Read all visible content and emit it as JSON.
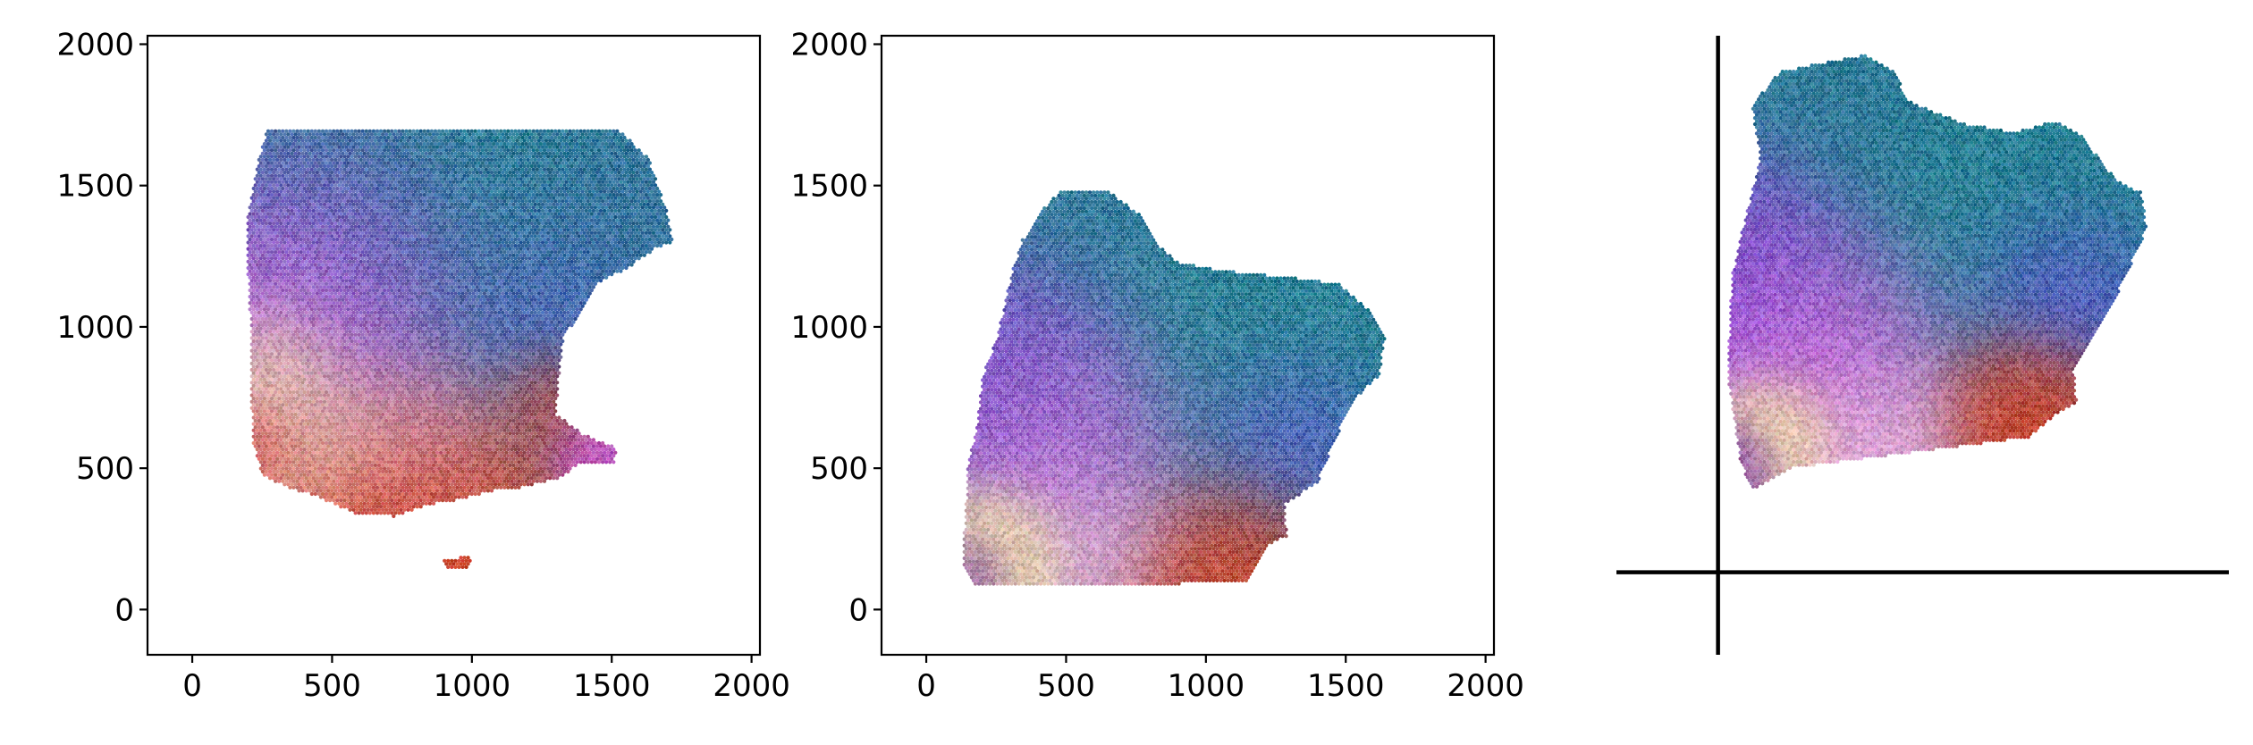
{
  "chart_data": [
    {
      "type": "scatter",
      "name": "panel-1",
      "xlim": [
        -160,
        2030
      ],
      "ylim": [
        -160,
        2030
      ],
      "xticks": [
        {
          "value": 0,
          "label": "0"
        },
        {
          "value": 500,
          "label": "500"
        },
        {
          "value": 1000,
          "label": "1000"
        },
        {
          "value": 1500,
          "label": "1500"
        },
        {
          "value": 2000,
          "label": "2000"
        }
      ],
      "yticks": [
        {
          "value": 0,
          "label": "0"
        },
        {
          "value": 500,
          "label": "500"
        },
        {
          "value": 1000,
          "label": "1000"
        },
        {
          "value": 1500,
          "label": "1500"
        },
        {
          "value": 2000,
          "label": "2000"
        }
      ],
      "show_axes": true,
      "grid": false,
      "marker_size": 13,
      "outline": [
        [
          270,
          1700
        ],
        [
          1520,
          1700
        ],
        [
          1630,
          1600
        ],
        [
          1700,
          1400
        ],
        [
          1720,
          1300
        ],
        [
          1660,
          1280
        ],
        [
          1560,
          1210
        ],
        [
          1440,
          1150
        ],
        [
          1400,
          1060
        ],
        [
          1330,
          970
        ],
        [
          1310,
          820
        ],
        [
          1300,
          690
        ],
        [
          1400,
          620
        ],
        [
          1520,
          570
        ],
        [
          1510,
          520
        ],
        [
          1380,
          520
        ],
        [
          1330,
          470
        ],
        [
          1170,
          430
        ],
        [
          1080,
          420
        ],
        [
          960,
          390
        ],
        [
          840,
          370
        ],
        [
          720,
          330
        ],
        [
          580,
          340
        ],
        [
          450,
          400
        ],
        [
          340,
          430
        ],
        [
          250,
          480
        ],
        [
          220,
          580
        ],
        [
          210,
          760
        ],
        [
          210,
          990
        ],
        [
          200,
          1180
        ],
        [
          200,
          1400
        ],
        [
          240,
          1600
        ]
      ],
      "islands": [
        {
          "outline": [
            [
              890,
              175
            ],
            [
              1000,
              190
            ],
            [
              985,
              150
            ],
            [
              905,
              150
            ]
          ]
        }
      ],
      "color_zones": [
        {
          "at": [
            1050,
            1450
          ],
          "radius": 600,
          "color": "#1e7a8f",
          "weight": 3.0
        },
        {
          "at": [
            1480,
            1450
          ],
          "radius": 320,
          "color": "#3a5fa0",
          "weight": 1.0
        },
        {
          "at": [
            650,
            1250
          ],
          "radius": 380,
          "color": "#8a3fd6",
          "weight": 1.6
        },
        {
          "at": [
            1250,
            1100
          ],
          "radius": 300,
          "color": "#6a3fe0",
          "weight": 1.0
        },
        {
          "at": [
            500,
            1000
          ],
          "radius": 380,
          "color": "#d966dc",
          "weight": 1.8
        },
        {
          "at": [
            330,
            860
          ],
          "radius": 190,
          "color": "#f2ea8c",
          "weight": 1.5
        },
        {
          "at": [
            480,
            650
          ],
          "radius": 230,
          "color": "#ecd8a0",
          "weight": 1.4
        },
        {
          "at": [
            800,
            640
          ],
          "radius": 250,
          "color": "#e6b2d6",
          "weight": 1.0
        },
        {
          "at": [
            800,
            460
          ],
          "radius": 360,
          "color": "#cf3a1f",
          "weight": 1.8
        },
        {
          "at": [
            1280,
            760
          ],
          "radius": 160,
          "color": "#cc3b22",
          "weight": 1.2
        },
        {
          "at": [
            250,
            600
          ],
          "radius": 140,
          "color": "#c83a2a",
          "weight": 1.0
        },
        {
          "at": [
            1440,
            570
          ],
          "radius": 140,
          "color": "#d94bd0",
          "weight": 1.0
        }
      ]
    },
    {
      "type": "scatter",
      "name": "panel-2",
      "xlim": [
        -160,
        2030
      ],
      "ylim": [
        -160,
        2030
      ],
      "xticks": [
        {
          "value": 0,
          "label": "0"
        },
        {
          "value": 500,
          "label": "500"
        },
        {
          "value": 1000,
          "label": "1000"
        },
        {
          "value": 1500,
          "label": "1500"
        },
        {
          "value": 2000,
          "label": "2000"
        }
      ],
      "yticks": [
        {
          "value": 0,
          "label": "0"
        },
        {
          "value": 500,
          "label": "500"
        },
        {
          "value": 1000,
          "label": "1000"
        },
        {
          "value": 1500,
          "label": "1500"
        },
        {
          "value": 2000,
          "label": "2000"
        }
      ],
      "show_axes": true,
      "grid": false,
      "marker_size": 13,
      "outline": [
        [
          480,
          1480
        ],
        [
          650,
          1480
        ],
        [
          760,
          1400
        ],
        [
          820,
          1300
        ],
        [
          900,
          1230
        ],
        [
          1050,
          1200
        ],
        [
          1250,
          1180
        ],
        [
          1350,
          1170
        ],
        [
          1480,
          1150
        ],
        [
          1580,
          1060
        ],
        [
          1640,
          960
        ],
        [
          1620,
          830
        ],
        [
          1530,
          740
        ],
        [
          1470,
          620
        ],
        [
          1400,
          450
        ],
        [
          1280,
          370
        ],
        [
          1290,
          260
        ],
        [
          1220,
          230
        ],
        [
          1150,
          100
        ],
        [
          870,
          90
        ],
        [
          400,
          90
        ],
        [
          180,
          80
        ],
        [
          130,
          160
        ],
        [
          150,
          520
        ],
        [
          180,
          640
        ],
        [
          200,
          820
        ],
        [
          250,
          950
        ],
        [
          310,
          1200
        ],
        [
          340,
          1300
        ],
        [
          400,
          1400
        ]
      ],
      "islands": [],
      "color_zones": [
        {
          "at": [
            1000,
            1050
          ],
          "radius": 560,
          "color": "#1e7a8f",
          "weight": 3.0
        },
        {
          "at": [
            650,
            1350
          ],
          "radius": 230,
          "color": "#2f6e9a",
          "weight": 1.2
        },
        {
          "at": [
            450,
            900
          ],
          "radius": 300,
          "color": "#8a3fd6",
          "weight": 1.6
        },
        {
          "at": [
            1250,
            650
          ],
          "radius": 260,
          "color": "#6a3fe0",
          "weight": 1.0
        },
        {
          "at": [
            600,
            650
          ],
          "radius": 330,
          "color": "#d966dc",
          "weight": 1.8
        },
        {
          "at": [
            300,
            230
          ],
          "radius": 170,
          "color": "#ecdca0",
          "weight": 1.5
        },
        {
          "at": [
            650,
            280
          ],
          "radius": 230,
          "color": "#e6b2d6",
          "weight": 1.0
        },
        {
          "at": [
            1050,
            200
          ],
          "radius": 260,
          "color": "#cf3a1f",
          "weight": 1.5
        },
        {
          "at": [
            190,
            150
          ],
          "radius": 110,
          "color": "#7d3aa0",
          "weight": 1.0
        }
      ]
    },
    {
      "type": "scatter",
      "name": "panel-3",
      "xlim": [
        -360,
        1810
      ],
      "ylim": [
        -300,
        1950
      ],
      "xticks": [],
      "yticks": [],
      "show_axes": false,
      "crosshair": {
        "x": 0,
        "y": 0
      },
      "grid": false,
      "marker_size": 13,
      "outline": [
        [
          220,
          1820
        ],
        [
          520,
          1880
        ],
        [
          620,
          1820
        ],
        [
          680,
          1710
        ],
        [
          870,
          1630
        ],
        [
          1050,
          1600
        ],
        [
          1200,
          1640
        ],
        [
          1300,
          1580
        ],
        [
          1350,
          1500
        ],
        [
          1420,
          1420
        ],
        [
          1500,
          1380
        ],
        [
          1520,
          1250
        ],
        [
          1460,
          1110
        ],
        [
          1400,
          980
        ],
        [
          1320,
          830
        ],
        [
          1260,
          740
        ],
        [
          1270,
          620
        ],
        [
          1220,
          590
        ],
        [
          1100,
          490
        ],
        [
          800,
          450
        ],
        [
          500,
          410
        ],
        [
          260,
          380
        ],
        [
          120,
          300
        ],
        [
          80,
          400
        ],
        [
          40,
          680
        ],
        [
          40,
          860
        ],
        [
          50,
          1080
        ],
        [
          100,
          1300
        ],
        [
          150,
          1500
        ],
        [
          120,
          1700
        ]
      ],
      "islands": [],
      "color_zones": [
        {
          "at": [
            820,
            1420
          ],
          "radius": 520,
          "color": "#1e7a8f",
          "weight": 3.0
        },
        {
          "at": [
            500,
            1650
          ],
          "radius": 230,
          "color": "#2f6e9a",
          "weight": 1.2
        },
        {
          "at": [
            250,
            1150
          ],
          "radius": 300,
          "color": "#8a3fd6",
          "weight": 1.6
        },
        {
          "at": [
            1150,
            1050
          ],
          "radius": 260,
          "color": "#6a3fe0",
          "weight": 1.0
        },
        {
          "at": [
            450,
            900
          ],
          "radius": 330,
          "color": "#d966dc",
          "weight": 1.8
        },
        {
          "at": [
            230,
            540
          ],
          "radius": 160,
          "color": "#ecdca0",
          "weight": 1.5
        },
        {
          "at": [
            600,
            560
          ],
          "radius": 230,
          "color": "#e6b2d6",
          "weight": 1.0
        },
        {
          "at": [
            1050,
            630
          ],
          "radius": 230,
          "color": "#cf3a1f",
          "weight": 1.5
        },
        {
          "at": [
            90,
            430
          ],
          "radius": 110,
          "color": "#7d3aa0",
          "weight": 1.0
        }
      ]
    }
  ]
}
